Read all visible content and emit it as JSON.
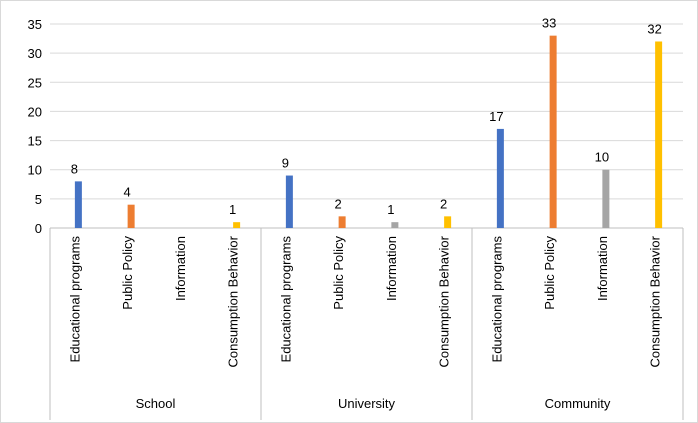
{
  "chart_data": {
    "type": "bar",
    "title": "",
    "xlabel": "",
    "ylabel": "",
    "ylim": [
      0,
      35
    ],
    "yticks": [
      0,
      5,
      10,
      15,
      20,
      25,
      30,
      35
    ],
    "grid": true,
    "legend": "none",
    "groups": [
      {
        "name": "School",
        "bars": [
          {
            "category": "Educational programs",
            "value": 8,
            "label": "8",
            "color": "#4472c4"
          },
          {
            "category": "Public Policy",
            "value": 4,
            "label": "4",
            "color": "#ed7d31"
          },
          {
            "category": "Information",
            "value": 0,
            "label": "",
            "color": "#a5a5a5"
          },
          {
            "category": "Consumption Behavior",
            "value": 1,
            "label": "1",
            "color": "#ffc000"
          }
        ]
      },
      {
        "name": "University",
        "bars": [
          {
            "category": "Educational programs",
            "value": 9,
            "label": "9",
            "color": "#4472c4"
          },
          {
            "category": "Public Policy",
            "value": 2,
            "label": "2",
            "color": "#ed7d31"
          },
          {
            "category": "Information",
            "value": 1,
            "label": "1",
            "color": "#a5a5a5"
          },
          {
            "category": "Consumption Behavior",
            "value": 2,
            "label": "2",
            "color": "#ffc000"
          }
        ]
      },
      {
        "name": "Community",
        "bars": [
          {
            "category": "Educational programs",
            "value": 17,
            "label": "17",
            "color": "#4472c4"
          },
          {
            "category": "Public Policy",
            "value": 33,
            "label": "33",
            "color": "#ed7d31"
          },
          {
            "category": "Information",
            "value": 10,
            "label": "10",
            "color": "#a5a5a5"
          },
          {
            "category": "Consumption Behavior",
            "value": 32,
            "label": "32",
            "color": "#ffc000"
          }
        ]
      }
    ]
  }
}
